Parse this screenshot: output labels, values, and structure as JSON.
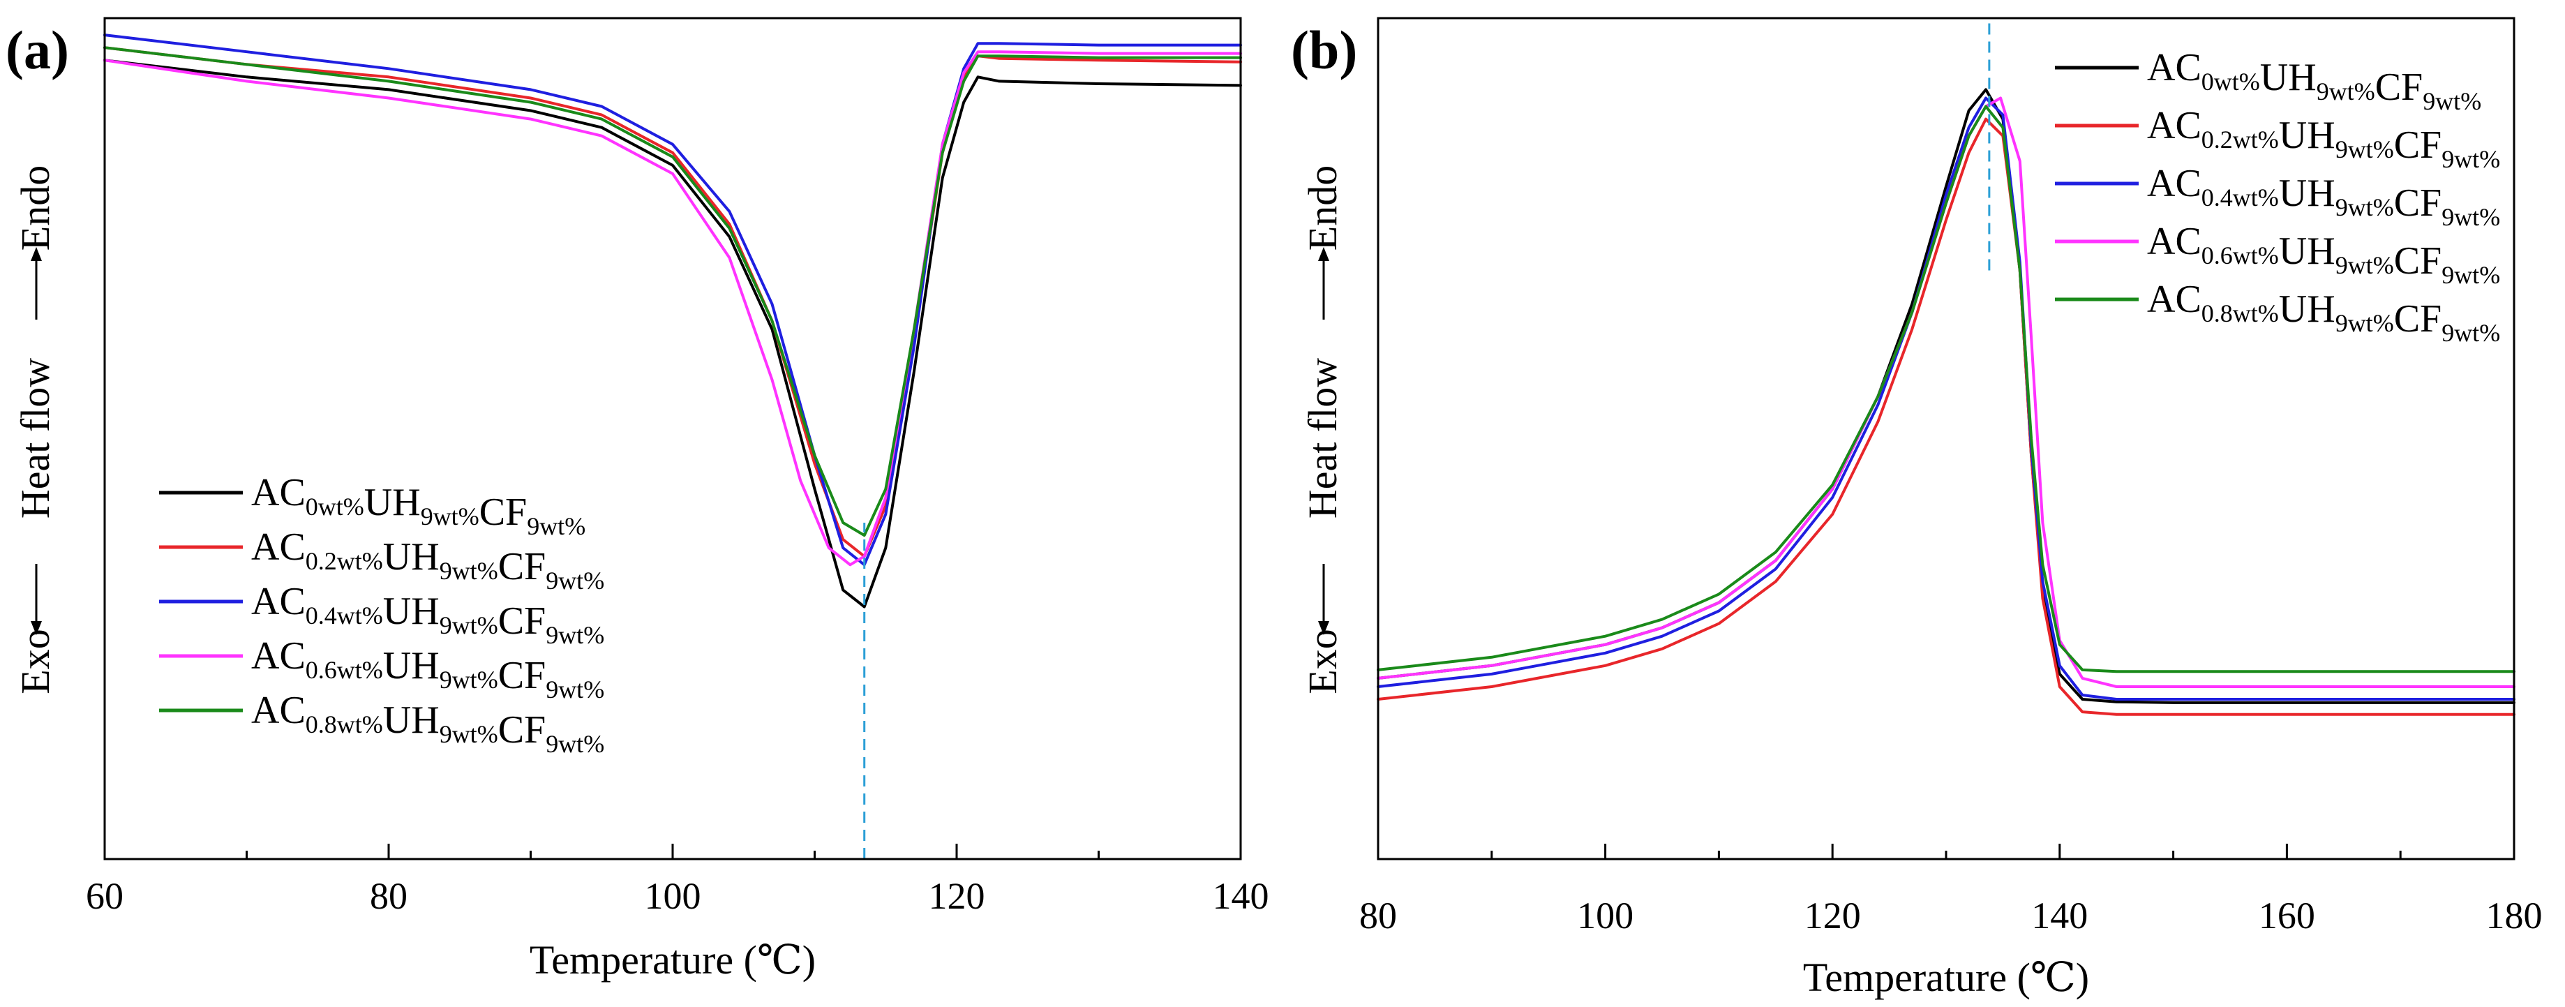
{
  "chart_data": [
    {
      "type": "line",
      "panel_label": "(a)",
      "xlabel": "Temperature (℃)",
      "ylabel_left": "Exo",
      "ylabel_mid": "Heat flow",
      "ylabel_right": "Endo",
      "xlim": [
        60,
        140
      ],
      "ylim": [
        0,
        100
      ],
      "x_ticks": [
        60,
        80,
        100,
        120,
        140
      ],
      "x_tick_labels": [
        "60",
        "80",
        "100",
        "120",
        "140"
      ],
      "y_ticks_shown": false,
      "legend_position": "lower-left",
      "colors": [
        "#000000",
        "#e8262a",
        "#1f1fe0",
        "#ff33ff",
        "#1a8a1a"
      ],
      "reference_line": {
        "x": 113.5,
        "y_range": [
          0,
          40
        ],
        "color": "#2b9fd6"
      },
      "series": [
        {
          "name": "AC0wt%UH9wt%CF9wt%",
          "legend": {
            "base": "AC",
            "s1": "0wt%",
            "m": "UH",
            "s2": "9wt%",
            "m2": "CF",
            "s3": "9wt%"
          },
          "x": [
            60,
            70,
            80,
            90,
            95,
            100,
            104,
            107,
            110,
            112,
            113.5,
            115,
            117,
            119,
            120.5,
            121.5,
            123,
            130,
            140
          ],
          "y": [
            95,
            93,
            91.5,
            89,
            87,
            82.5,
            74,
            63,
            44,
            32,
            30,
            37,
            58,
            81,
            90,
            93,
            92.5,
            92.2,
            92
          ]
        },
        {
          "name": "AC0.2wt%UH9wt%CF9wt%",
          "legend": {
            "base": "AC",
            "s1": "0.2wt%",
            "m": "UH",
            "s2": "9wt%",
            "m2": "CF",
            "s3": "9wt%"
          },
          "x": [
            60,
            70,
            80,
            90,
            95,
            100,
            104,
            107,
            110,
            112,
            113.5,
            115,
            117,
            119,
            120.5,
            121.5,
            123,
            130,
            140
          ],
          "y": [
            96.5,
            94.5,
            93,
            90.5,
            88.5,
            84,
            75.5,
            64,
            47,
            38,
            36,
            42,
            62,
            84,
            93,
            95.5,
            95.2,
            95,
            94.8
          ]
        },
        {
          "name": "AC0.4wt%UH9wt%CF9wt%",
          "legend": {
            "base": "AC",
            "s1": "0.4wt%",
            "m": "UH",
            "s2": "9wt%",
            "m2": "CF",
            "s3": "9wt%"
          },
          "x": [
            60,
            70,
            80,
            90,
            95,
            100,
            104,
            107,
            110,
            112,
            113.5,
            115,
            117,
            119,
            120.5,
            121.5,
            123,
            130,
            140
          ],
          "y": [
            98,
            96,
            94,
            91.5,
            89.5,
            85,
            77,
            66,
            48,
            37,
            35,
            41,
            61,
            85,
            94,
            97,
            97,
            96.8,
            96.8
          ]
        },
        {
          "name": "AC0.6wt%UH9wt%CF9wt%",
          "legend": {
            "base": "AC",
            "s1": "0.6wt%",
            "m": "UH",
            "s2": "9wt%",
            "m2": "CF",
            "s3": "9wt%"
          },
          "x": [
            60,
            70,
            80,
            90,
            95,
            100,
            104,
            107,
            109,
            111,
            112.5,
            113.5,
            115,
            117,
            119,
            120.5,
            121.5,
            123,
            130,
            140
          ],
          "y": [
            95,
            92.5,
            90.5,
            88,
            86,
            81.5,
            71.5,
            57,
            45,
            37,
            35,
            36,
            43,
            63,
            85,
            93.5,
            96,
            96,
            95.8,
            95.8
          ]
        },
        {
          "name": "AC0.8wt%UH9wt%CF9wt%",
          "legend": {
            "base": "AC",
            "s1": "0.8wt%",
            "m": "UH",
            "s2": "9wt%",
            "m2": "CF",
            "s3": "9wt%"
          },
          "x": [
            60,
            70,
            80,
            90,
            95,
            100,
            104,
            107,
            110,
            112,
            113.5,
            115,
            117,
            119,
            120.5,
            121.5,
            123,
            130,
            140
          ],
          "y": [
            96.5,
            94.5,
            92.5,
            90,
            88,
            83.5,
            75,
            64,
            48,
            40,
            38.5,
            44,
            63,
            84,
            92.5,
            95.5,
            95.5,
            95.3,
            95.3
          ]
        }
      ]
    },
    {
      "type": "line",
      "panel_label": "(b)",
      "xlabel": "Temperature (℃)",
      "ylabel_left": "Exo",
      "ylabel_mid": "Heat flow",
      "ylabel_right": "Endo",
      "xlim": [
        80,
        180
      ],
      "ylim": [
        0,
        100
      ],
      "x_ticks": [
        80,
        100,
        120,
        140,
        160,
        180
      ],
      "x_tick_labels": [
        "80",
        "100",
        "120",
        "140",
        "160",
        "180"
      ],
      "y_ticks_shown": false,
      "legend_position": "top-right",
      "colors": [
        "#000000",
        "#e8262a",
        "#1f1fe0",
        "#ff33ff",
        "#1a8a1a"
      ],
      "reference_line": {
        "x": 133.8,
        "y_range": [
          70,
          100
        ],
        "color": "#2b9fd6"
      },
      "series": [
        {
          "name": "AC0wt%UH9wt%CF9wt%",
          "legend": {
            "base": "AC",
            "s1": "0wt%",
            "m": "UH",
            "s2": "9wt%",
            "m2": "CF",
            "s3": "9wt%"
          },
          "x": [
            80,
            90,
            100,
            105,
            110,
            115,
            120,
            124,
            127,
            130,
            132,
            133.5,
            135,
            136.5,
            137.5,
            138.5,
            140,
            142,
            145,
            150,
            160,
            180
          ],
          "y": [
            21.5,
            23,
            25.5,
            27.5,
            30.5,
            35.5,
            44,
            55,
            66,
            80,
            89,
            91.5,
            88,
            70,
            48,
            32,
            22,
            19,
            18.7,
            18.6,
            18.6,
            18.6
          ]
        },
        {
          "name": "AC0.2wt%UH9wt%CF9wt%",
          "legend": {
            "base": "AC",
            "s1": "0.2wt%",
            "m": "UH",
            "s2": "9wt%",
            "m2": "CF",
            "s3": "9wt%"
          },
          "x": [
            80,
            90,
            100,
            105,
            110,
            115,
            120,
            124,
            127,
            130,
            132,
            133.5,
            135,
            136.5,
            137.5,
            138.5,
            140,
            142,
            145,
            150,
            160,
            180
          ],
          "y": [
            19,
            20.5,
            23,
            25,
            28,
            33,
            41,
            52,
            63,
            76,
            84,
            88,
            86,
            70,
            48,
            31,
            20.5,
            17.5,
            17.2,
            17.2,
            17.2,
            17.2
          ]
        },
        {
          "name": "AC0.4wt%UH9wt%CF9wt%",
          "legend": {
            "base": "AC",
            "s1": "0.4wt%",
            "m": "UH",
            "s2": "9wt%",
            "m2": "CF",
            "s3": "9wt%"
          },
          "x": [
            80,
            90,
            100,
            105,
            110,
            115,
            120,
            124,
            127,
            130,
            132,
            133.5,
            135,
            136.5,
            137.5,
            138.5,
            140,
            142,
            145,
            150,
            160,
            180
          ],
          "y": [
            20.5,
            22,
            24.5,
            26.5,
            29.5,
            34.5,
            43,
            54,
            65,
            79,
            87,
            90.5,
            88.5,
            71,
            49,
            33,
            23,
            19.5,
            19,
            19,
            19,
            19
          ]
        },
        {
          "name": "AC0.6wt%UH9wt%CF9wt%",
          "legend": {
            "base": "AC",
            "s1": "0.6wt%",
            "m": "UH",
            "s2": "9wt%",
            "m2": "CF",
            "s3": "9wt%"
          },
          "x": [
            80,
            90,
            100,
            105,
            110,
            115,
            120,
            124,
            127,
            130,
            132,
            133.5,
            134.8,
            136.5,
            137.5,
            138.5,
            140,
            142,
            145,
            150,
            160,
            180
          ],
          "y": [
            21.5,
            23,
            25.5,
            27.5,
            30.5,
            35.5,
            44,
            55,
            65,
            78,
            86,
            89.5,
            90.5,
            83,
            62,
            40,
            26,
            21.5,
            20.5,
            20.5,
            20.5,
            20.5
          ]
        },
        {
          "name": "AC0.8wt%UH9wt%CF9wt%",
          "legend": {
            "base": "AC",
            "s1": "0.8wt%",
            "m": "UH",
            "s2": "9wt%",
            "m2": "CF",
            "s3": "9wt%"
          },
          "x": [
            80,
            90,
            100,
            105,
            110,
            115,
            120,
            124,
            127,
            130,
            132,
            133.5,
            135,
            136.5,
            137.5,
            138.5,
            140,
            142,
            145,
            150,
            160,
            180
          ],
          "y": [
            22.5,
            24,
            26.5,
            28.5,
            31.5,
            36.5,
            44.5,
            55,
            65,
            78,
            86,
            89.5,
            87,
            70,
            50,
            35,
            25.5,
            22.5,
            22.3,
            22.3,
            22.3,
            22.3
          ]
        }
      ]
    }
  ]
}
